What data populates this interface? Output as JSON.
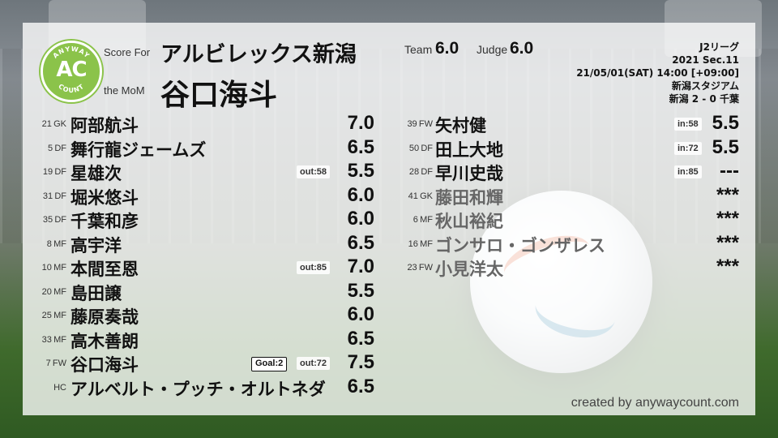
{
  "header": {
    "score_for_label": "Score For",
    "team_name": "アルビレックス新潟",
    "mom_label": "the MoM",
    "mom_name": "谷口海斗",
    "team_label": "Team",
    "team_score": "6.0",
    "judge_label": "Judge",
    "judge_score": "6.0"
  },
  "logo": {
    "ring_top": "ANYWAY",
    "ring_bottom": "COUNT",
    "main": "AC",
    "color": "#8bc34a"
  },
  "match": {
    "league": "J2リーグ",
    "section": "2021 Sec.11",
    "datetime": "21/05/01(SAT) 14:00 [+09:00]",
    "stadium": "新潟スタジアム",
    "result": "新潟 2 - 0 千葉"
  },
  "starters": [
    {
      "num": "21",
      "pos": "GK",
      "name": "阿部航斗",
      "rating": "7.0",
      "badge": "",
      "goal": ""
    },
    {
      "num": "5",
      "pos": "DF",
      "name": "舞行龍ジェームズ",
      "rating": "6.5",
      "badge": "",
      "goal": ""
    },
    {
      "num": "19",
      "pos": "DF",
      "name": "星雄次",
      "rating": "5.5",
      "badge": "out:58",
      "goal": ""
    },
    {
      "num": "31",
      "pos": "DF",
      "name": "堀米悠斗",
      "rating": "6.0",
      "badge": "",
      "goal": ""
    },
    {
      "num": "35",
      "pos": "DF",
      "name": "千葉和彦",
      "rating": "6.0",
      "badge": "",
      "goal": ""
    },
    {
      "num": "8",
      "pos": "MF",
      "name": "高宇洋",
      "rating": "6.5",
      "badge": "",
      "goal": ""
    },
    {
      "num": "10",
      "pos": "MF",
      "name": "本間至恩",
      "rating": "7.0",
      "badge": "out:85",
      "goal": ""
    },
    {
      "num": "20",
      "pos": "MF",
      "name": "島田譲",
      "rating": "5.5",
      "badge": "",
      "goal": ""
    },
    {
      "num": "25",
      "pos": "MF",
      "name": "藤原奏哉",
      "rating": "6.0",
      "badge": "",
      "goal": ""
    },
    {
      "num": "33",
      "pos": "MF",
      "name": "高木善朗",
      "rating": "6.5",
      "badge": "",
      "goal": ""
    },
    {
      "num": "7",
      "pos": "FW",
      "name": "谷口海斗",
      "rating": "7.5",
      "badge": "out:72",
      "goal": "Goal:2"
    },
    {
      "num": "",
      "pos": "HC",
      "name": "アルベルト・プッチ・オルトネダ",
      "rating": "6.5",
      "badge": "",
      "goal": ""
    }
  ],
  "subs": [
    {
      "num": "39",
      "pos": "FW",
      "name": "矢村健",
      "rating": "5.5",
      "badge": "in:58",
      "dim": false
    },
    {
      "num": "50",
      "pos": "DF",
      "name": "田上大地",
      "rating": "5.5",
      "badge": "in:72",
      "dim": false
    },
    {
      "num": "28",
      "pos": "DF",
      "name": "早川史哉",
      "rating": "---",
      "badge": "in:85",
      "dim": false
    },
    {
      "num": "41",
      "pos": "GK",
      "name": "藤田和輝",
      "rating": "***",
      "badge": "",
      "dim": true
    },
    {
      "num": "6",
      "pos": "MF",
      "name": "秋山裕紀",
      "rating": "***",
      "badge": "",
      "dim": true
    },
    {
      "num": "16",
      "pos": "MF",
      "name": "ゴンサロ・ゴンザレス",
      "rating": "***",
      "badge": "",
      "dim": true
    },
    {
      "num": "23",
      "pos": "FW",
      "name": "小見洋太",
      "rating": "***",
      "badge": "",
      "dim": true
    }
  ],
  "footer": {
    "credit": "created by anywaycount.com"
  }
}
